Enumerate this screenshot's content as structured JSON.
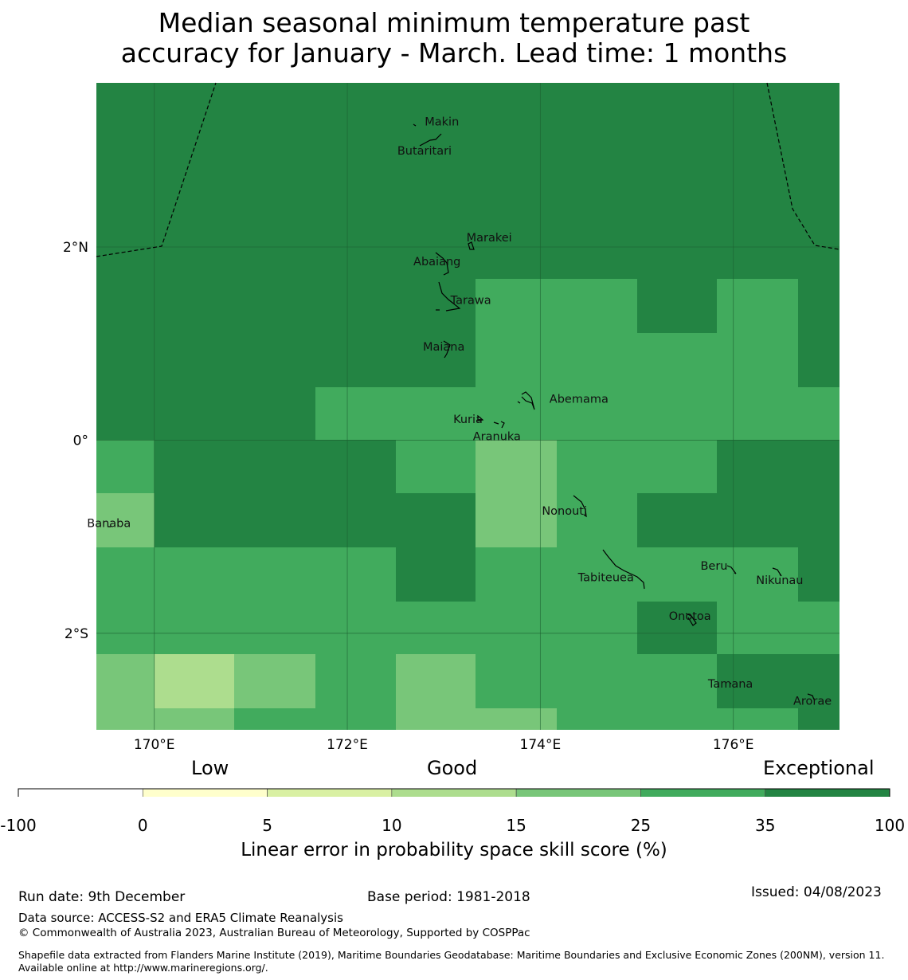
{
  "title": {
    "line1": "Median seasonal minimum temperature past",
    "line2": "accuracy for January - March. Lead time: 1 months"
  },
  "map": {
    "lon_range": [
      169.4,
      177.1
    ],
    "lat_range": [
      -3.0,
      3.7
    ],
    "x_ticks": [
      {
        "value": 170,
        "label": "170°E"
      },
      {
        "value": 172,
        "label": "172°E"
      },
      {
        "value": 174,
        "label": "174°E"
      },
      {
        "value": 176,
        "label": "176°E"
      }
    ],
    "y_ticks": [
      {
        "value": 2,
        "label": "2°N"
      },
      {
        "value": 0,
        "label": "0°"
      },
      {
        "value": -2,
        "label": "2°S"
      }
    ],
    "islands": [
      {
        "name": "Makin",
        "lon": 172.98,
        "lat": 3.3
      },
      {
        "name": "Butaritari",
        "lon": 172.8,
        "lat": 3.0
      },
      {
        "name": "Marakei",
        "lon": 173.47,
        "lat": 2.1
      },
      {
        "name": "Abaiang",
        "lon": 172.93,
        "lat": 1.85
      },
      {
        "name": "Tarawa",
        "lon": 173.28,
        "lat": 1.45
      },
      {
        "name": "Maiana",
        "lon": 173.0,
        "lat": 0.97
      },
      {
        "name": "Abemama",
        "lon": 174.4,
        "lat": 0.43
      },
      {
        "name": "Kuria",
        "lon": 173.25,
        "lat": 0.22
      },
      {
        "name": "Aranuka",
        "lon": 173.55,
        "lat": 0.04
      },
      {
        "name": "Nonouti",
        "lon": 174.25,
        "lat": -0.73
      },
      {
        "name": "Banaba",
        "lon": 169.53,
        "lat": -0.86
      },
      {
        "name": "Beru",
        "lon": 175.8,
        "lat": -1.3
      },
      {
        "name": "Tabiteuea",
        "lon": 174.68,
        "lat": -1.42
      },
      {
        "name": "Nikunau",
        "lon": 176.48,
        "lat": -1.45
      },
      {
        "name": "Onotoa",
        "lon": 175.55,
        "lat": -1.82
      },
      {
        "name": "Tamana",
        "lon": 175.97,
        "lat": -2.52
      },
      {
        "name": "Arorae",
        "lon": 176.82,
        "lat": -2.7
      }
    ]
  },
  "chart_data": {
    "type": "heatmap",
    "title": "Median seasonal minimum temperature past accuracy for January - March. Lead time: 1 months",
    "metric": "Linear error in probability space skill score (%)",
    "grid_lon_edges": [
      169.4,
      170.0,
      170.83,
      171.67,
      172.5,
      173.33,
      174.17,
      175.0,
      175.83,
      176.67,
      177.1
    ],
    "grid_lat_edges": [
      3.7,
      2.0,
      1.67,
      1.11,
      0.55,
      0.0,
      -0.55,
      -1.11,
      -1.67,
      -2.22,
      -2.78,
      -3.0
    ],
    "cells": [
      [
        35,
        35,
        35,
        35,
        35,
        35,
        35,
        35,
        35,
        35
      ],
      [
        35,
        35,
        35,
        35,
        35,
        35,
        35,
        35,
        35,
        35
      ],
      [
        35,
        35,
        35,
        35,
        35,
        25,
        25,
        35,
        25,
        35
      ],
      [
        35,
        35,
        35,
        35,
        35,
        25,
        25,
        25,
        25,
        35
      ],
      [
        35,
        35,
        35,
        25,
        25,
        25,
        25,
        25,
        25,
        25
      ],
      [
        25,
        35,
        35,
        35,
        25,
        15,
        25,
        25,
        35,
        35
      ],
      [
        15,
        35,
        35,
        35,
        35,
        15,
        25,
        35,
        35,
        35
      ],
      [
        25,
        25,
        25,
        25,
        35,
        25,
        25,
        25,
        25,
        35
      ],
      [
        25,
        25,
        25,
        25,
        25,
        25,
        25,
        35,
        25,
        25
      ],
      [
        15,
        10,
        15,
        25,
        15,
        25,
        25,
        25,
        35,
        35
      ],
      [
        15,
        15,
        25,
        25,
        15,
        15,
        25,
        25,
        25,
        35
      ]
    ],
    "colorbar": {
      "boundaries": [
        -100,
        0,
        5,
        10,
        15,
        25,
        35,
        100
      ],
      "boundary_labels": [
        "-100",
        "0",
        "5",
        "10",
        "15",
        "25",
        "35",
        "100"
      ],
      "colors": [
        "#ffffff",
        "#ffffcc",
        "#d9f0a3",
        "#addd8e",
        "#78c679",
        "#41ab5d",
        "#238443"
      ],
      "category_labels": [
        "Low",
        "Good",
        "Exceptional"
      ],
      "label": "Linear error in probability space skill score (%)"
    }
  },
  "footer": {
    "run_date": "Run date: 9th December",
    "base_period": "Base period: 1981-2018",
    "issued": "Issued: 04/08/2023",
    "data_source": "Data source: ACCESS-S2 and ERA5 Climate Reanalysis",
    "copyright": "© Commonwealth of Australia 2023, Australian Bureau of Meteorology, Supported by COSPPac",
    "shapefile": "Shapefile data extracted from Flanders Marine Institute (2019), Maritime Boundaries Geodatabase: Maritime Boundaries and Exclusive Economic Zones (200NM), version 11. Available online at http://www.marineregions.org/."
  }
}
